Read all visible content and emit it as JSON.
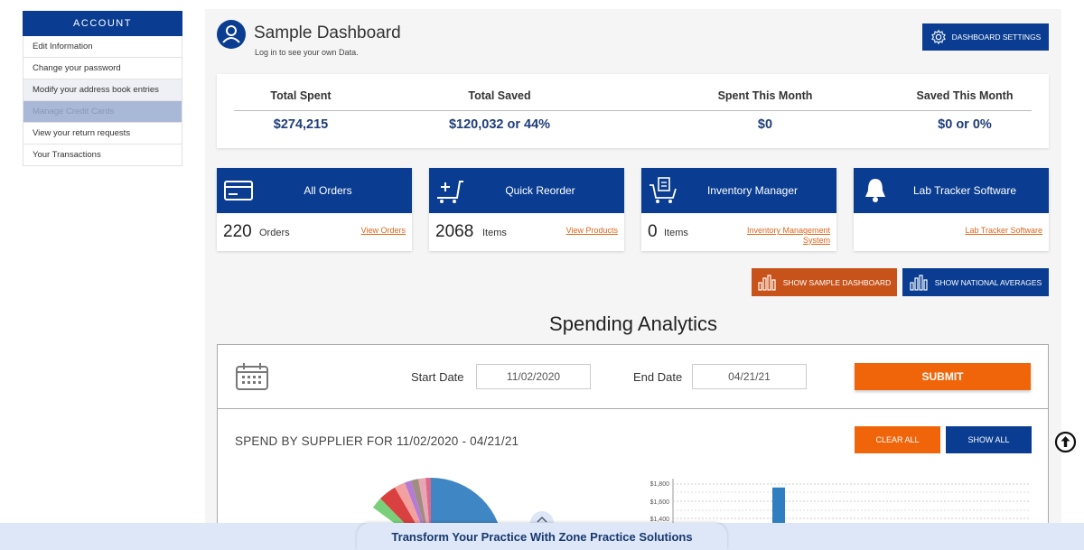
{
  "sidebar": {
    "header": "ACCOUNT",
    "items": [
      {
        "label": "Edit Information"
      },
      {
        "label": "Change your password"
      },
      {
        "label": "Modify your address book entries"
      },
      {
        "label": "Manage Credit Cards"
      },
      {
        "label": "View your return requests"
      },
      {
        "label": "Your Transactions"
      }
    ]
  },
  "header": {
    "title": "Sample Dashboard",
    "subtitle": "Log in to see your own Data.",
    "settings_button": "DASHBOARD SETTINGS",
    "avatar_icon": "user-avatar-icon",
    "settings_icon": "gear-icon"
  },
  "stats": [
    {
      "label": "Total Spent",
      "value": "$274,215"
    },
    {
      "label": "Total Saved",
      "value": "$120,032 or 44%"
    },
    {
      "label": "Spent This Month",
      "value": "$0"
    },
    {
      "label": "Saved This Month",
      "value": "$0 or 0%"
    }
  ],
  "cards": [
    {
      "title": "All Orders",
      "count": "220",
      "unit": "Orders",
      "link": "View Orders",
      "icon": "credit-card-icon"
    },
    {
      "title": "Quick Reorder",
      "count": "2068",
      "unit": "Items",
      "link": "View Products",
      "icon": "cart-plus-icon"
    },
    {
      "title": "Inventory Manager",
      "count": "0",
      "unit": "Items",
      "link": "Inventory Management System",
      "icon": "inventory-cart-icon"
    },
    {
      "title": "Lab Tracker Software",
      "count": "",
      "unit": "",
      "link": "Lab Tracker Software",
      "icon": "bell-icon"
    }
  ],
  "toggle_buttons": {
    "sample": "SHOW SAMPLE DASHBOARD",
    "national": "SHOW NATIONAL AVERAGES"
  },
  "analytics": {
    "title": "Spending Analytics",
    "start_label": "Start Date",
    "start_value": "11/02/2020",
    "end_label": "End Date",
    "end_value": "04/21/21",
    "submit": "SUBMIT",
    "spend_title": "SPEND BY SUPPLIER FOR 11/02/2020 - 04/21/21",
    "clear_all": "CLEAR ALL",
    "show_all": "SHOW ALL"
  },
  "chart_data": {
    "type": "bar",
    "y_ticks": [
      "$1,800",
      "$1,600",
      "$1,400"
    ],
    "bars": [
      {
        "value": 1760
      }
    ]
  },
  "banner": {
    "text": "Transform Your Practice With Zone Practice Solutions"
  },
  "colors": {
    "navy": "#0a3d91",
    "orange": "#f0650a",
    "link_orange": "#e0651b"
  }
}
